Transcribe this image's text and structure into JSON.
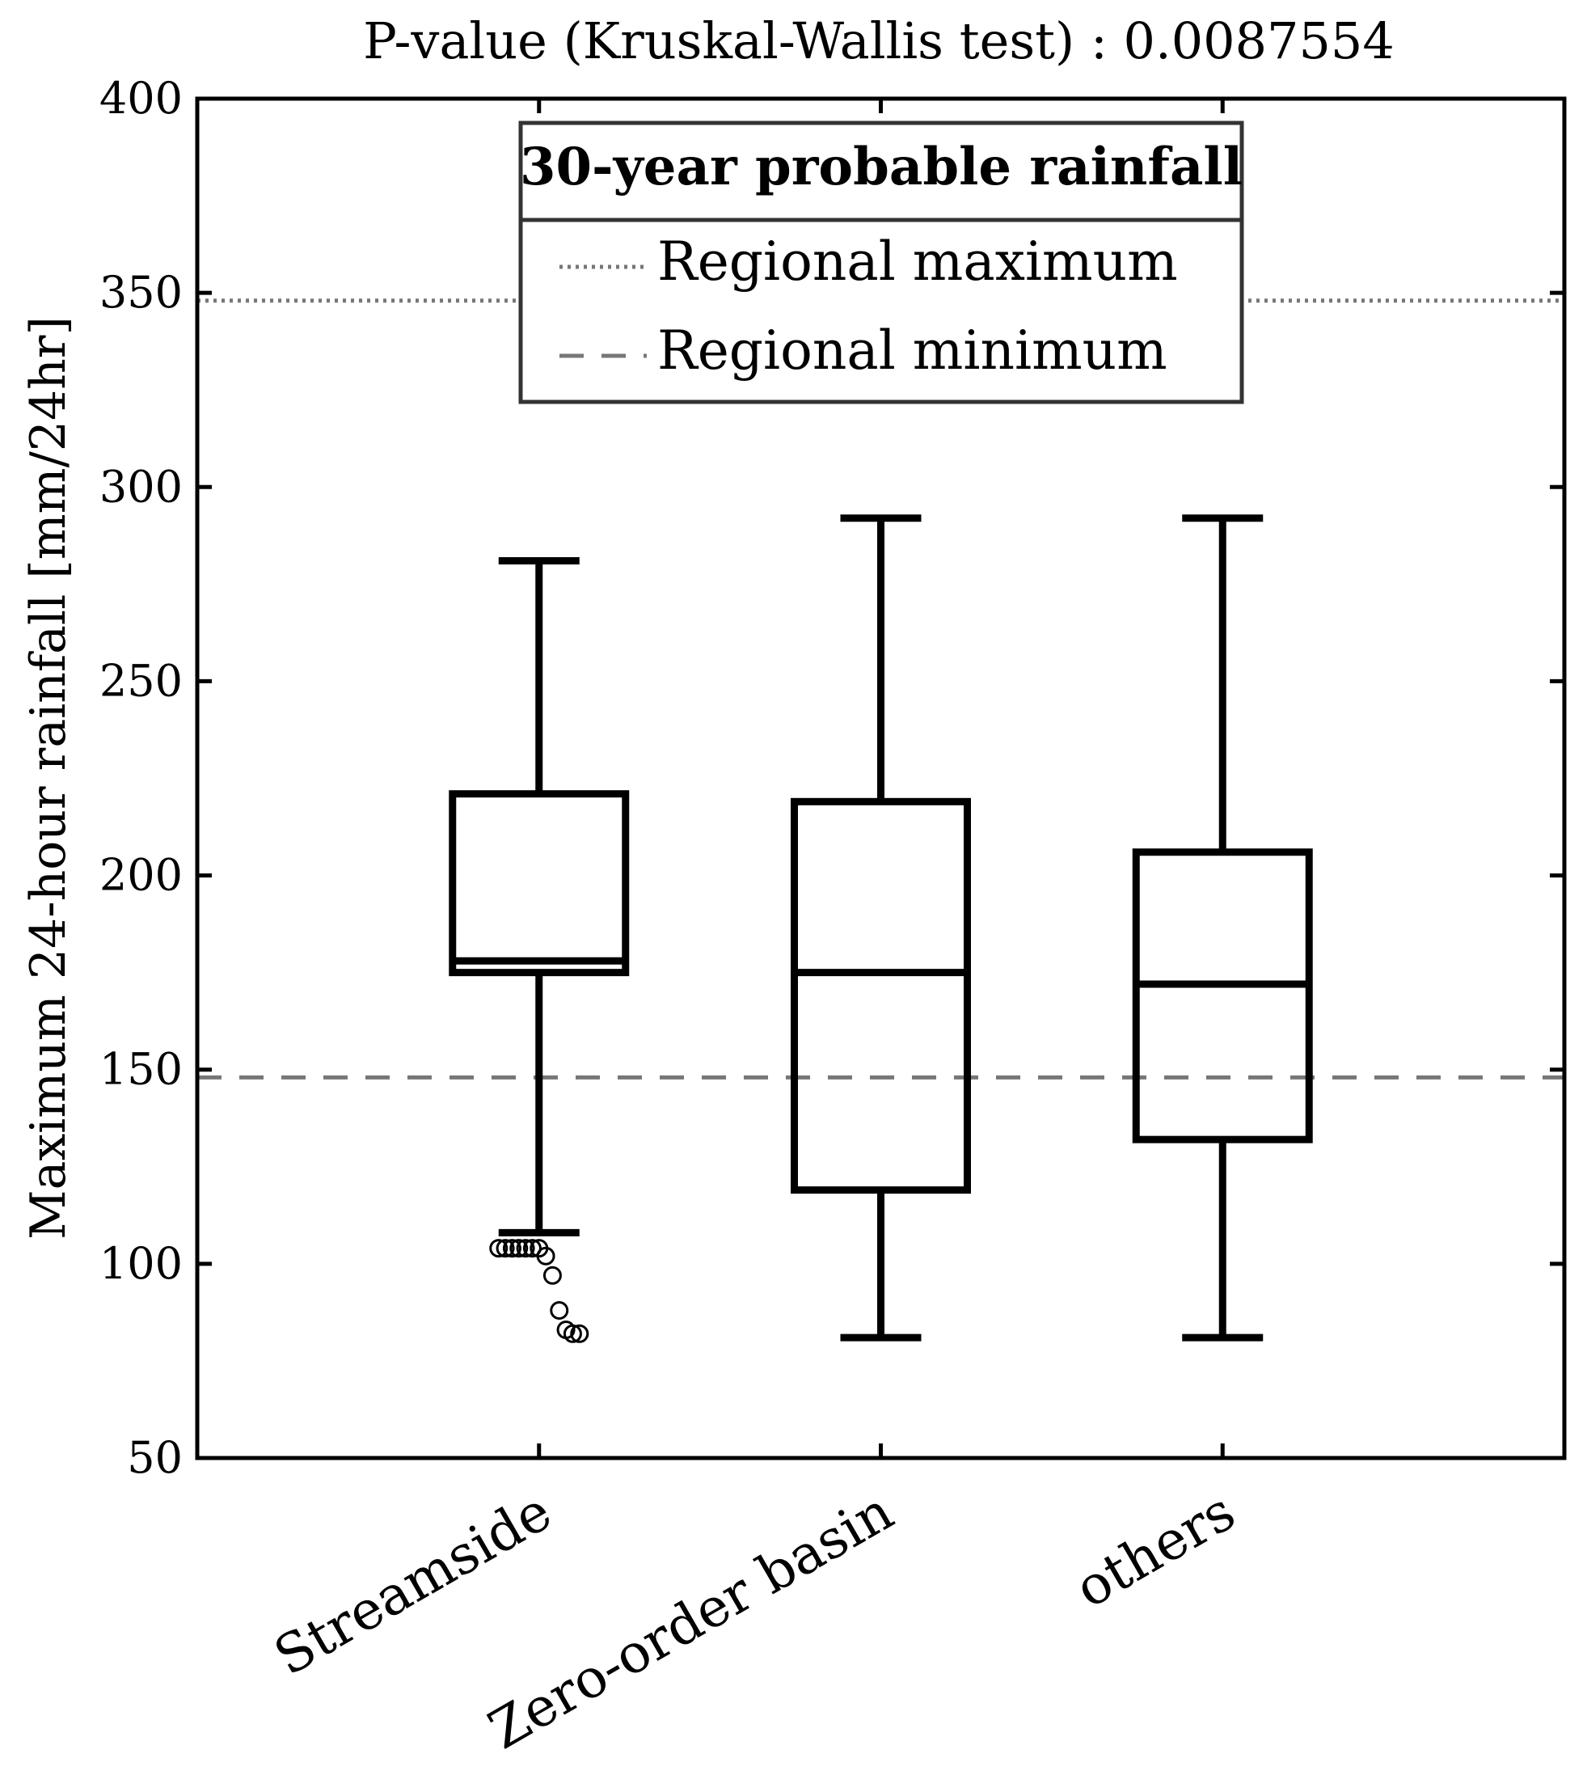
{
  "chart_data": {
    "type": "box",
    "title": "P-value (Kruskal-Wallis test) : 0.0087554",
    "ylabel": "Maximum 24-hour rainfall [mm/24hr]",
    "xlabel": "",
    "ylim": [
      50,
      400
    ],
    "yticks": [
      50,
      100,
      150,
      200,
      250,
      300,
      350,
      400
    ],
    "categories": [
      "Streamside",
      "Zero-order basin",
      "others"
    ],
    "boxes": [
      {
        "name": "Streamside",
        "whisker_low": 108,
        "q1": 175,
        "median": 178,
        "q3": 221,
        "whisker_high": 281,
        "outliers": [
          104,
          104,
          104,
          104,
          104,
          104,
          104,
          102,
          97,
          88,
          83,
          82,
          82
        ]
      },
      {
        "name": "Zero-order basin",
        "whisker_low": 81,
        "q1": 119,
        "median": 175,
        "q3": 219,
        "whisker_high": 292,
        "outliers": []
      },
      {
        "name": "others",
        "whisker_low": 81,
        "q1": 132,
        "median": 172,
        "q3": 206,
        "whisker_high": 292,
        "outliers": []
      }
    ],
    "reference_lines": [
      {
        "name": "Regional maximum",
        "value": 348,
        "style": "dotted",
        "color": "#777777"
      },
      {
        "name": "Regional minimum",
        "value": 148,
        "style": "dashed",
        "color": "#777777"
      }
    ],
    "legend": {
      "title": "30-year probable rainfall",
      "entries": [
        "Regional maximum",
        "Regional minimum"
      ],
      "placement": "top-center"
    },
    "grid": false
  }
}
